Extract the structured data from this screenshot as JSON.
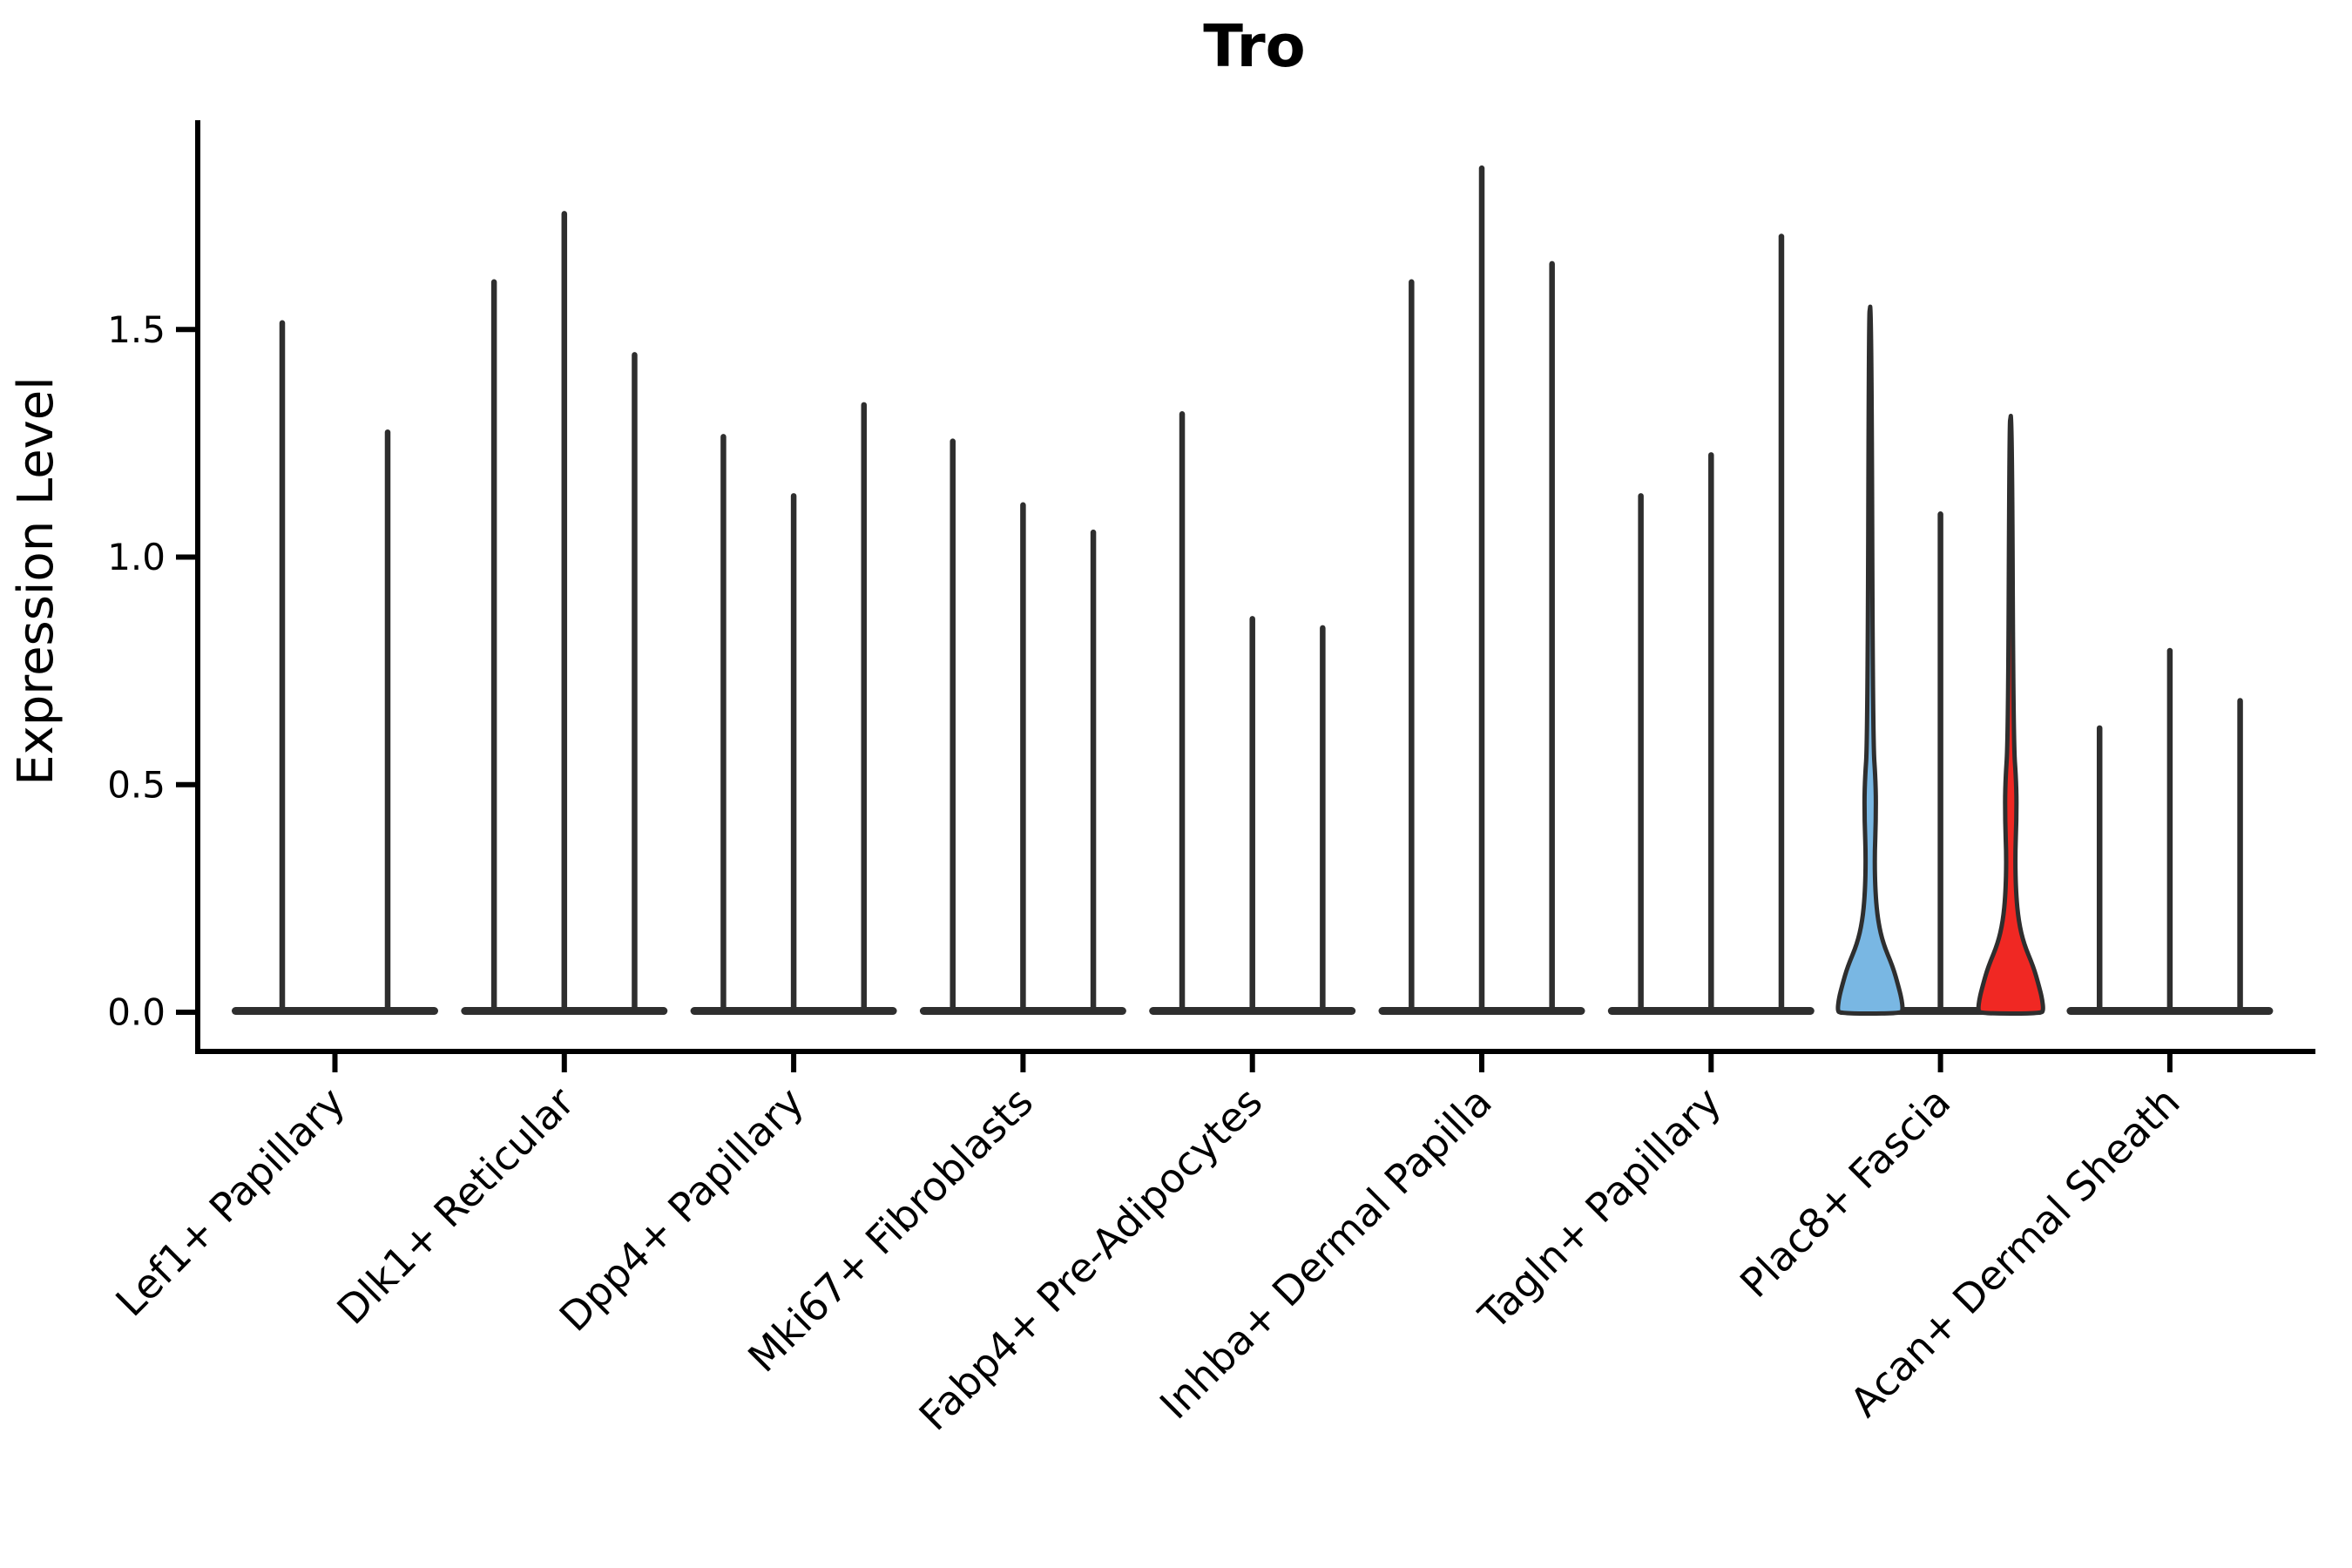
{
  "chart_data": {
    "type": "violin",
    "title": "Tro",
    "ylabel": "Expression Level",
    "xlabel": "",
    "ylim": [
      -0.09,
      1.96
    ],
    "yticks": [
      0.0,
      0.5,
      1.0,
      1.5
    ],
    "ytick_labels": [
      "0.0",
      "0.5",
      "1.0",
      "1.5"
    ],
    "grid": false,
    "legend": "none",
    "categories": [
      "Lef1+ Papillary",
      "Dlk1+ Reticular",
      "Dpp4+ Papillary",
      "Mki67+ Fibroblasts",
      "Fabp4+ Pre-Adipocytes",
      "Inhba+ Dermal Papilla",
      "Tagln+ Papillary",
      "Plac8+ Fascia",
      "Acan+ Dermal Sheath"
    ],
    "groups": [
      {
        "category": "Lef1+ Papillary",
        "violins": [
          {
            "max_expression": 1.52
          },
          {
            "max_expression": 1.28
          }
        ]
      },
      {
        "category": "Dlk1+ Reticular",
        "violins": [
          {
            "max_expression": 1.61
          },
          {
            "max_expression": 1.76
          },
          {
            "max_expression": 1.45
          }
        ]
      },
      {
        "category": "Dpp4+ Papillary",
        "violins": [
          {
            "max_expression": 1.27
          },
          {
            "max_expression": 1.14
          },
          {
            "max_expression": 1.34
          }
        ]
      },
      {
        "category": "Mki67+ Fibroblasts",
        "violins": [
          {
            "max_expression": 1.26
          },
          {
            "max_expression": 1.12
          },
          {
            "max_expression": 1.06
          }
        ]
      },
      {
        "category": "Fabp4+ Pre-Adipocytes",
        "violins": [
          {
            "max_expression": 1.32
          },
          {
            "max_expression": 0.87
          },
          {
            "max_expression": 0.85
          }
        ]
      },
      {
        "category": "Inhba+ Dermal Papilla",
        "violins": [
          {
            "max_expression": 1.61
          },
          {
            "max_expression": 1.86
          },
          {
            "max_expression": 1.65
          }
        ]
      },
      {
        "category": "Tagln+ Papillary",
        "violins": [
          {
            "max_expression": 1.14
          },
          {
            "max_expression": 1.23
          },
          {
            "max_expression": 1.71
          }
        ]
      },
      {
        "category": "Plac8+ Fascia",
        "violins": [
          {
            "max_expression": 1.55,
            "highlight": "blue"
          },
          {
            "max_expression": 1.1
          },
          {
            "max_expression": 1.31,
            "highlight": "red"
          }
        ]
      },
      {
        "category": "Acan+ Dermal Sheath",
        "violins": [
          {
            "max_expression": 0.63
          },
          {
            "max_expression": 0.8
          },
          {
            "max_expression": 0.69
          }
        ]
      }
    ],
    "colors": {
      "highlight_blue": "#79B7E3",
      "highlight_red": "#F02823",
      "violin_outline": "#2E2E2E",
      "axis": "#000000"
    }
  }
}
